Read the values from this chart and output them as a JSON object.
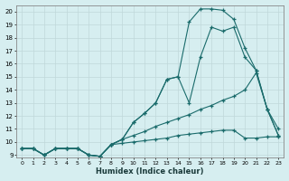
{
  "xlabel": "Humidex (Indice chaleur)",
  "background_color": "#d6eef0",
  "grid_color": "#c0d8da",
  "line_color": "#1a6b6b",
  "xlim": [
    -0.5,
    23.5
  ],
  "ylim": [
    8.8,
    20.5
  ],
  "xticks": [
    0,
    1,
    2,
    3,
    4,
    5,
    6,
    7,
    8,
    9,
    10,
    11,
    12,
    13,
    14,
    15,
    16,
    17,
    18,
    19,
    20,
    21,
    22,
    23
  ],
  "yticks": [
    9,
    10,
    11,
    12,
    13,
    14,
    15,
    16,
    17,
    18,
    19,
    20
  ],
  "series": [
    {
      "x": [
        0,
        1,
        2,
        3,
        4,
        5,
        6,
        7,
        8,
        9,
        10,
        11,
        12,
        13,
        14,
        15,
        16,
        17,
        18,
        19,
        20,
        21,
        22,
        23
      ],
      "y": [
        9.5,
        9.5,
        9.0,
        9.5,
        9.5,
        9.5,
        9.0,
        8.9,
        9.8,
        9.9,
        10.0,
        10.1,
        10.2,
        10.3,
        10.5,
        10.6,
        10.7,
        10.8,
        10.9,
        10.9,
        10.3,
        10.3,
        10.4,
        10.4
      ]
    },
    {
      "x": [
        0,
        1,
        2,
        3,
        4,
        5,
        6,
        7,
        8,
        9,
        10,
        11,
        12,
        13,
        14,
        15,
        16,
        17,
        18,
        19,
        20,
        21,
        22,
        23
      ],
      "y": [
        9.5,
        9.5,
        9.0,
        9.5,
        9.5,
        9.5,
        9.0,
        8.9,
        9.8,
        10.2,
        10.5,
        10.8,
        11.2,
        11.5,
        11.8,
        12.1,
        12.5,
        12.8,
        13.2,
        13.5,
        14.0,
        15.3,
        12.5,
        10.5
      ]
    },
    {
      "x": [
        0,
        1,
        2,
        3,
        4,
        5,
        6,
        7,
        8,
        9,
        10,
        11,
        12,
        13,
        14,
        15,
        16,
        17,
        18,
        19,
        20,
        21,
        22,
        23
      ],
      "y": [
        9.5,
        9.5,
        9.0,
        9.5,
        9.5,
        9.5,
        9.0,
        8.9,
        9.8,
        10.2,
        11.5,
        12.2,
        13.0,
        14.8,
        15.0,
        13.0,
        16.5,
        18.8,
        18.5,
        18.8,
        16.5,
        15.5,
        12.5,
        11.0
      ]
    },
    {
      "x": [
        0,
        1,
        2,
        3,
        4,
        5,
        6,
        7,
        8,
        9,
        10,
        11,
        12,
        13,
        14,
        15,
        16,
        17,
        18,
        19,
        20,
        21,
        22,
        23
      ],
      "y": [
        9.5,
        9.5,
        9.0,
        9.5,
        9.5,
        9.5,
        9.0,
        8.9,
        9.8,
        10.2,
        11.5,
        12.2,
        13.0,
        14.8,
        15.0,
        19.2,
        20.2,
        20.2,
        20.1,
        19.4,
        17.2,
        15.5,
        12.5,
        10.5
      ]
    }
  ]
}
